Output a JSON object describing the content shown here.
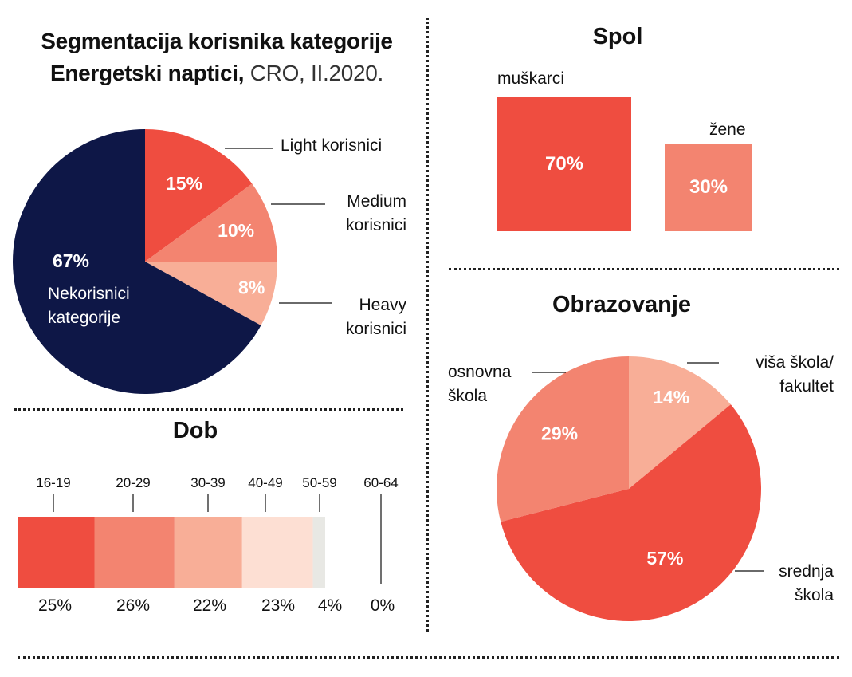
{
  "title": {
    "bold": "Segmentacija korisnika kategorije",
    "bold2": "Energetski naptici,",
    "light": " CRO, II.2020."
  },
  "colors": {
    "navy": "#0e1747",
    "red": "#ef4d40",
    "salmon": "#f38470",
    "peach": "#f8ae97",
    "pale": "#fddfd3",
    "grey": "#e8e8e4"
  },
  "chart_data": [
    {
      "type": "pie",
      "title": "Segmentacija korisnika kategorije Energetski naptici, CRO, II.2020.",
      "slices": [
        {
          "label": "Light korisnici",
          "value": 15,
          "display": "15%"
        },
        {
          "label": "Medium korisnici",
          "value": 10,
          "display": "10%"
        },
        {
          "label": "Heavy korisnici",
          "value": 8,
          "display": "8%"
        },
        {
          "label": "Nekorisnici kategorije",
          "value": 67,
          "display": "67%"
        }
      ],
      "annotations": {
        "light": "Light korisnici",
        "medium_1": "Medium",
        "medium_2": "korisnici",
        "heavy_1": "Heavy",
        "heavy_2": "korisnici",
        "non_1": "Nekorisnici",
        "non_2": "kategorije"
      }
    },
    {
      "type": "bar",
      "title": "Spol",
      "categories": [
        "muškarci",
        "žene"
      ],
      "values": [
        70,
        30
      ],
      "display": [
        "70%",
        "30%"
      ]
    },
    {
      "type": "bar",
      "title": "Dob",
      "stacked": true,
      "categories": [
        "16-19",
        "20-29",
        "30-39",
        "40-49",
        "50-59",
        "60-64"
      ],
      "values": [
        25,
        26,
        22,
        23,
        4,
        0
      ],
      "display": [
        "25%",
        "26%",
        "22%",
        "23%",
        "4%",
        "0%"
      ]
    },
    {
      "type": "pie",
      "title": "Obrazovanje",
      "slices": [
        {
          "label": "viša škola/ fakultet",
          "value": 14,
          "display": "14%"
        },
        {
          "label": "srednja škola",
          "value": 57,
          "display": "57%"
        },
        {
          "label": "osnovna škola",
          "value": 29,
          "display": "29%"
        }
      ],
      "annotations": {
        "visa_1": "viša škola/",
        "visa_2": "fakultet",
        "srednja_1": "srednja",
        "srednja_2": "škola",
        "osnovna_1": "osnovna",
        "osnovna_2": "škola"
      }
    }
  ]
}
